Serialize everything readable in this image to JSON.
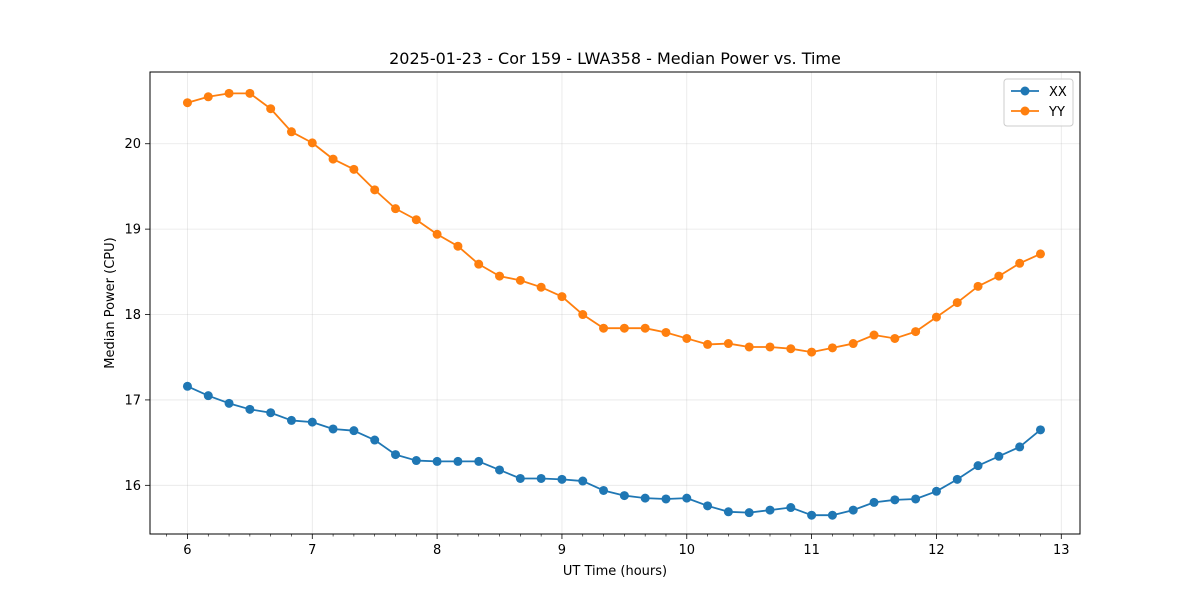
{
  "chart_data": {
    "type": "line",
    "title": "2025-01-23 - Cor 159 - LWA358 - Median Power vs. Time",
    "xlabel": "UT Time (hours)",
    "ylabel": "Median Power (CPU)",
    "xlim": [
      5.7,
      13.15
    ],
    "ylim": [
      15.43,
      20.84
    ],
    "xticks": [
      6,
      7,
      8,
      9,
      10,
      11,
      12,
      13
    ],
    "xtick_labels": [
      "6",
      "7",
      "8",
      "9",
      "10",
      "11",
      "12",
      "13"
    ],
    "yticks": [
      16,
      17,
      18,
      19,
      20
    ],
    "ytick_labels": [
      "16",
      "17",
      "18",
      "19",
      "20"
    ],
    "grid": true,
    "legend_position": "top-right",
    "x": [
      6.0,
      6.1667,
      6.3333,
      6.5,
      6.6667,
      6.8333,
      7.0,
      7.1667,
      7.3333,
      7.5,
      7.6667,
      7.8333,
      8.0,
      8.1667,
      8.3333,
      8.5,
      8.6667,
      8.8333,
      9.0,
      9.1667,
      9.3333,
      9.5,
      9.6667,
      9.8333,
      10.0,
      10.1667,
      10.3333,
      10.5,
      10.6667,
      10.8333,
      11.0,
      11.1667,
      11.3333,
      11.5,
      11.6667,
      11.8333,
      12.0,
      12.1667,
      12.3333,
      12.5,
      12.6667,
      12.8333
    ],
    "series": [
      {
        "name": "XX",
        "color": "#1f77b4",
        "values": [
          17.16,
          17.05,
          16.96,
          16.89,
          16.85,
          16.76,
          16.74,
          16.66,
          16.64,
          16.53,
          16.36,
          16.29,
          16.28,
          16.28,
          16.28,
          16.18,
          16.08,
          16.08,
          16.07,
          16.05,
          15.94,
          15.88,
          15.85,
          15.84,
          15.85,
          15.76,
          15.69,
          15.68,
          15.71,
          15.74,
          15.65,
          15.65,
          15.71,
          15.8,
          15.83,
          15.84,
          15.93,
          16.07,
          16.23,
          16.34,
          16.45,
          16.65
        ]
      },
      {
        "name": "YY",
        "color": "#ff7f0e",
        "values": [
          20.48,
          20.55,
          20.59,
          20.59,
          20.41,
          20.14,
          20.01,
          19.82,
          19.7,
          19.46,
          19.24,
          19.11,
          18.94,
          18.8,
          18.59,
          18.45,
          18.4,
          18.32,
          18.21,
          18.0,
          17.84,
          17.84,
          17.84,
          17.79,
          17.72,
          17.65,
          17.66,
          17.62,
          17.62,
          17.6,
          17.56,
          17.61,
          17.66,
          17.76,
          17.72,
          17.8,
          17.97,
          18.14,
          18.33,
          18.45,
          18.6,
          18.71
        ]
      }
    ]
  }
}
